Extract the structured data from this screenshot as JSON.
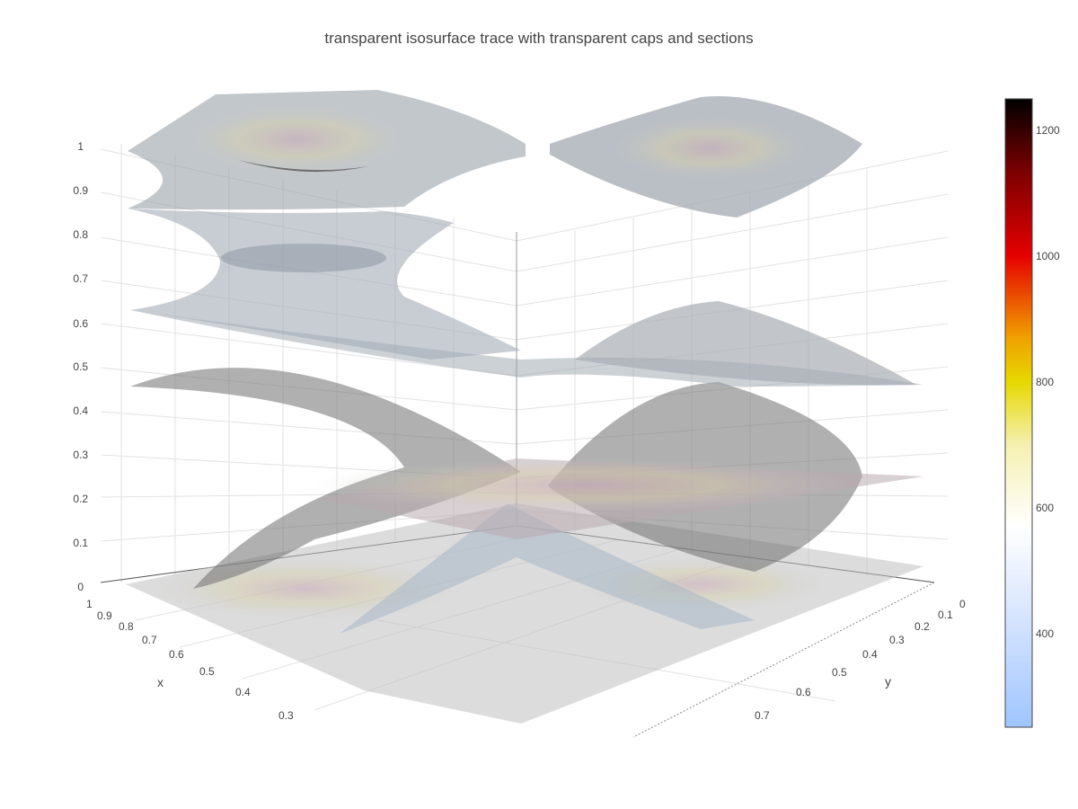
{
  "chart_data": {
    "type": "isosurface",
    "title": "transparent isosurface trace with transparent caps and sections",
    "scene": {
      "xaxis": {
        "title": "x",
        "ticks": [
          "1",
          "0.9",
          "0.8",
          "0.7",
          "0.6",
          "0.5",
          "0.4",
          "0.3"
        ]
      },
      "yaxis": {
        "title": "y",
        "ticks": [
          "0",
          "0.1",
          "0.2",
          "0.3",
          "0.4",
          "0.5",
          "0.6",
          "0.7"
        ]
      },
      "zaxis": {
        "title": "",
        "ticks": [
          "0",
          "0.1",
          "0.2",
          "0.3",
          "0.4",
          "0.5",
          "0.6",
          "0.7",
          "0.8",
          "0.9",
          "1"
        ]
      },
      "grid": true
    },
    "surface": {
      "opacity": "transparent",
      "caps": "transparent",
      "sections": "transparent",
      "color": "#a9b4c0"
    },
    "colorbar": {
      "ticks": [
        "1200",
        "1000",
        "800",
        "600",
        "400"
      ],
      "colorscale": [
        "#000000",
        "#7f0000",
        "#e60000",
        "#f0a000",
        "#e6d800",
        "#f5f0b0",
        "#ffffff",
        "#cfe0ff",
        "#9ec5ff"
      ]
    }
  }
}
